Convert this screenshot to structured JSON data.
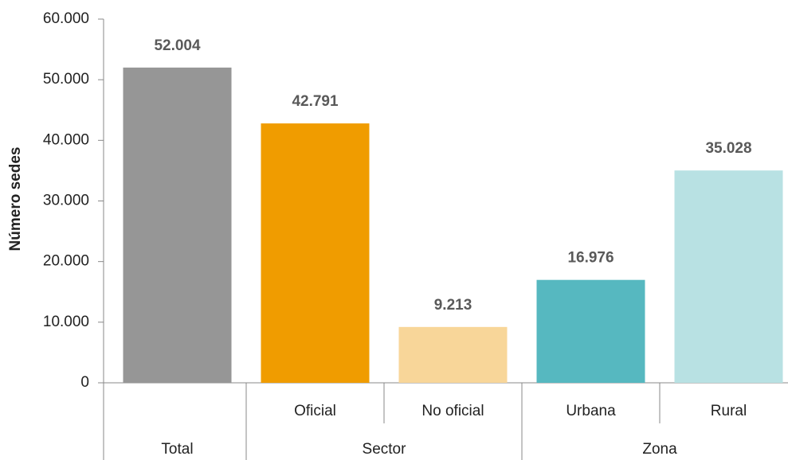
{
  "chart_data": {
    "type": "bar",
    "y_label": "Número sedes",
    "categories": [
      null,
      "Oficial",
      "No oficial",
      "Urbana",
      "Rural"
    ],
    "groups": [
      {
        "label": "Total",
        "size": 1
      },
      {
        "label": "Sector",
        "size": 2
      },
      {
        "label": "Zona",
        "size": 2
      }
    ],
    "values": [
      52004,
      42791,
      9213,
      16976,
      35028
    ],
    "value_labels": [
      "52.004",
      "42.791",
      "9.213",
      "16.976",
      "35.028"
    ],
    "colors": [
      "#969696",
      "#f09c00",
      "#f8d699",
      "#56b8c0",
      "#b8e1e3"
    ],
    "ylim": [
      0,
      60000
    ],
    "yticks": [
      0,
      {
        "value": 10000,
        "label": "10.000"
      },
      {
        "value": 20000,
        "label": "20.000"
      },
      {
        "value": 30000,
        "label": "30.000"
      },
      {
        "value": 40000,
        "label": "40.000"
      },
      {
        "value": 50000,
        "label": "50.000"
      },
      {
        "value": 60000,
        "label": "60.000"
      }
    ],
    "grid": false
  }
}
